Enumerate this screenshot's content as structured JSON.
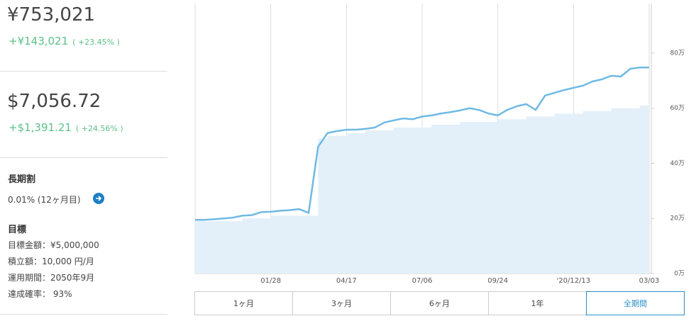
{
  "summary": {
    "jpy_value": "¥753,021",
    "jpy_gain": "+¥143,021",
    "jpy_gain_pct": "( +23.45% )",
    "usd_value": "$7,056.72",
    "usd_gain": "+$1,391.21",
    "usd_gain_pct": "( +24.56% )",
    "discount_title": "長期割",
    "discount_text": "0.01% (12ヶ月目)",
    "goal_title": "目標",
    "goal_lines": [
      "目標金額：¥5,000,000",
      "積立額：10,000 円/月",
      "運用期間：2050年9月",
      "達成確率： 93%"
    ]
  },
  "chart_data": {
    "type": "line",
    "categories": [
      null,
      null,
      null,
      null,
      null,
      null,
      null,
      null,
      "01/28",
      null,
      null,
      null,
      null,
      null,
      null,
      null,
      "04/17",
      null,
      null,
      null,
      null,
      null,
      null,
      null,
      "07/06",
      null,
      null,
      null,
      null,
      null,
      null,
      null,
      "09/24",
      null,
      null,
      null,
      null,
      null,
      null,
      null,
      "'20/12/13",
      null,
      null,
      null,
      null,
      null,
      null,
      null,
      "03/03"
    ],
    "series": [
      {
        "color": "#e3f0f9",
        "style": "step-area",
        "values": [
          19,
          19,
          19,
          19,
          19,
          20,
          20,
          20,
          21,
          21,
          21,
          21,
          21,
          49,
          50,
          50,
          51,
          51,
          52,
          52,
          52,
          53,
          53,
          53,
          53,
          54,
          54,
          54,
          55,
          55,
          55,
          55,
          56,
          56,
          56,
          57,
          57,
          57,
          58,
          58,
          58,
          59,
          59,
          59,
          60,
          60,
          60,
          61,
          61
        ]
      },
      {
        "color": "#6fb9e3",
        "style": "line",
        "values": [
          19.5,
          19.5,
          19.7,
          20,
          20.3,
          21,
          21.2,
          22.3,
          22.4,
          22.8,
          23,
          23.4,
          22,
          46,
          51,
          51.7,
          52.2,
          52.2,
          52.5,
          53,
          54.8,
          55.6,
          56.3,
          56,
          57,
          57.4,
          58.1,
          58.6,
          59.2,
          60,
          59.4,
          58.1,
          57.4,
          59.4,
          60.7,
          61.5,
          59.4,
          64.6,
          65.6,
          66.6,
          67.4,
          68.2,
          69.7,
          70.5,
          71.8,
          71.5,
          74.3,
          74.8,
          74.8
        ]
      }
    ],
    "ylim": [
      0,
      98
    ],
    "yticks": [
      {
        "value": 0,
        "label": "0万"
      },
      {
        "value": 20,
        "label": "20万"
      },
      {
        "value": 40,
        "label": "40万"
      },
      {
        "value": 60,
        "label": "60万"
      },
      {
        "value": 80,
        "label": "80万"
      }
    ]
  },
  "period_buttons": [
    "1ヶ月",
    "3ヶ月",
    "6ヶ月",
    "1年",
    "全期間"
  ]
}
